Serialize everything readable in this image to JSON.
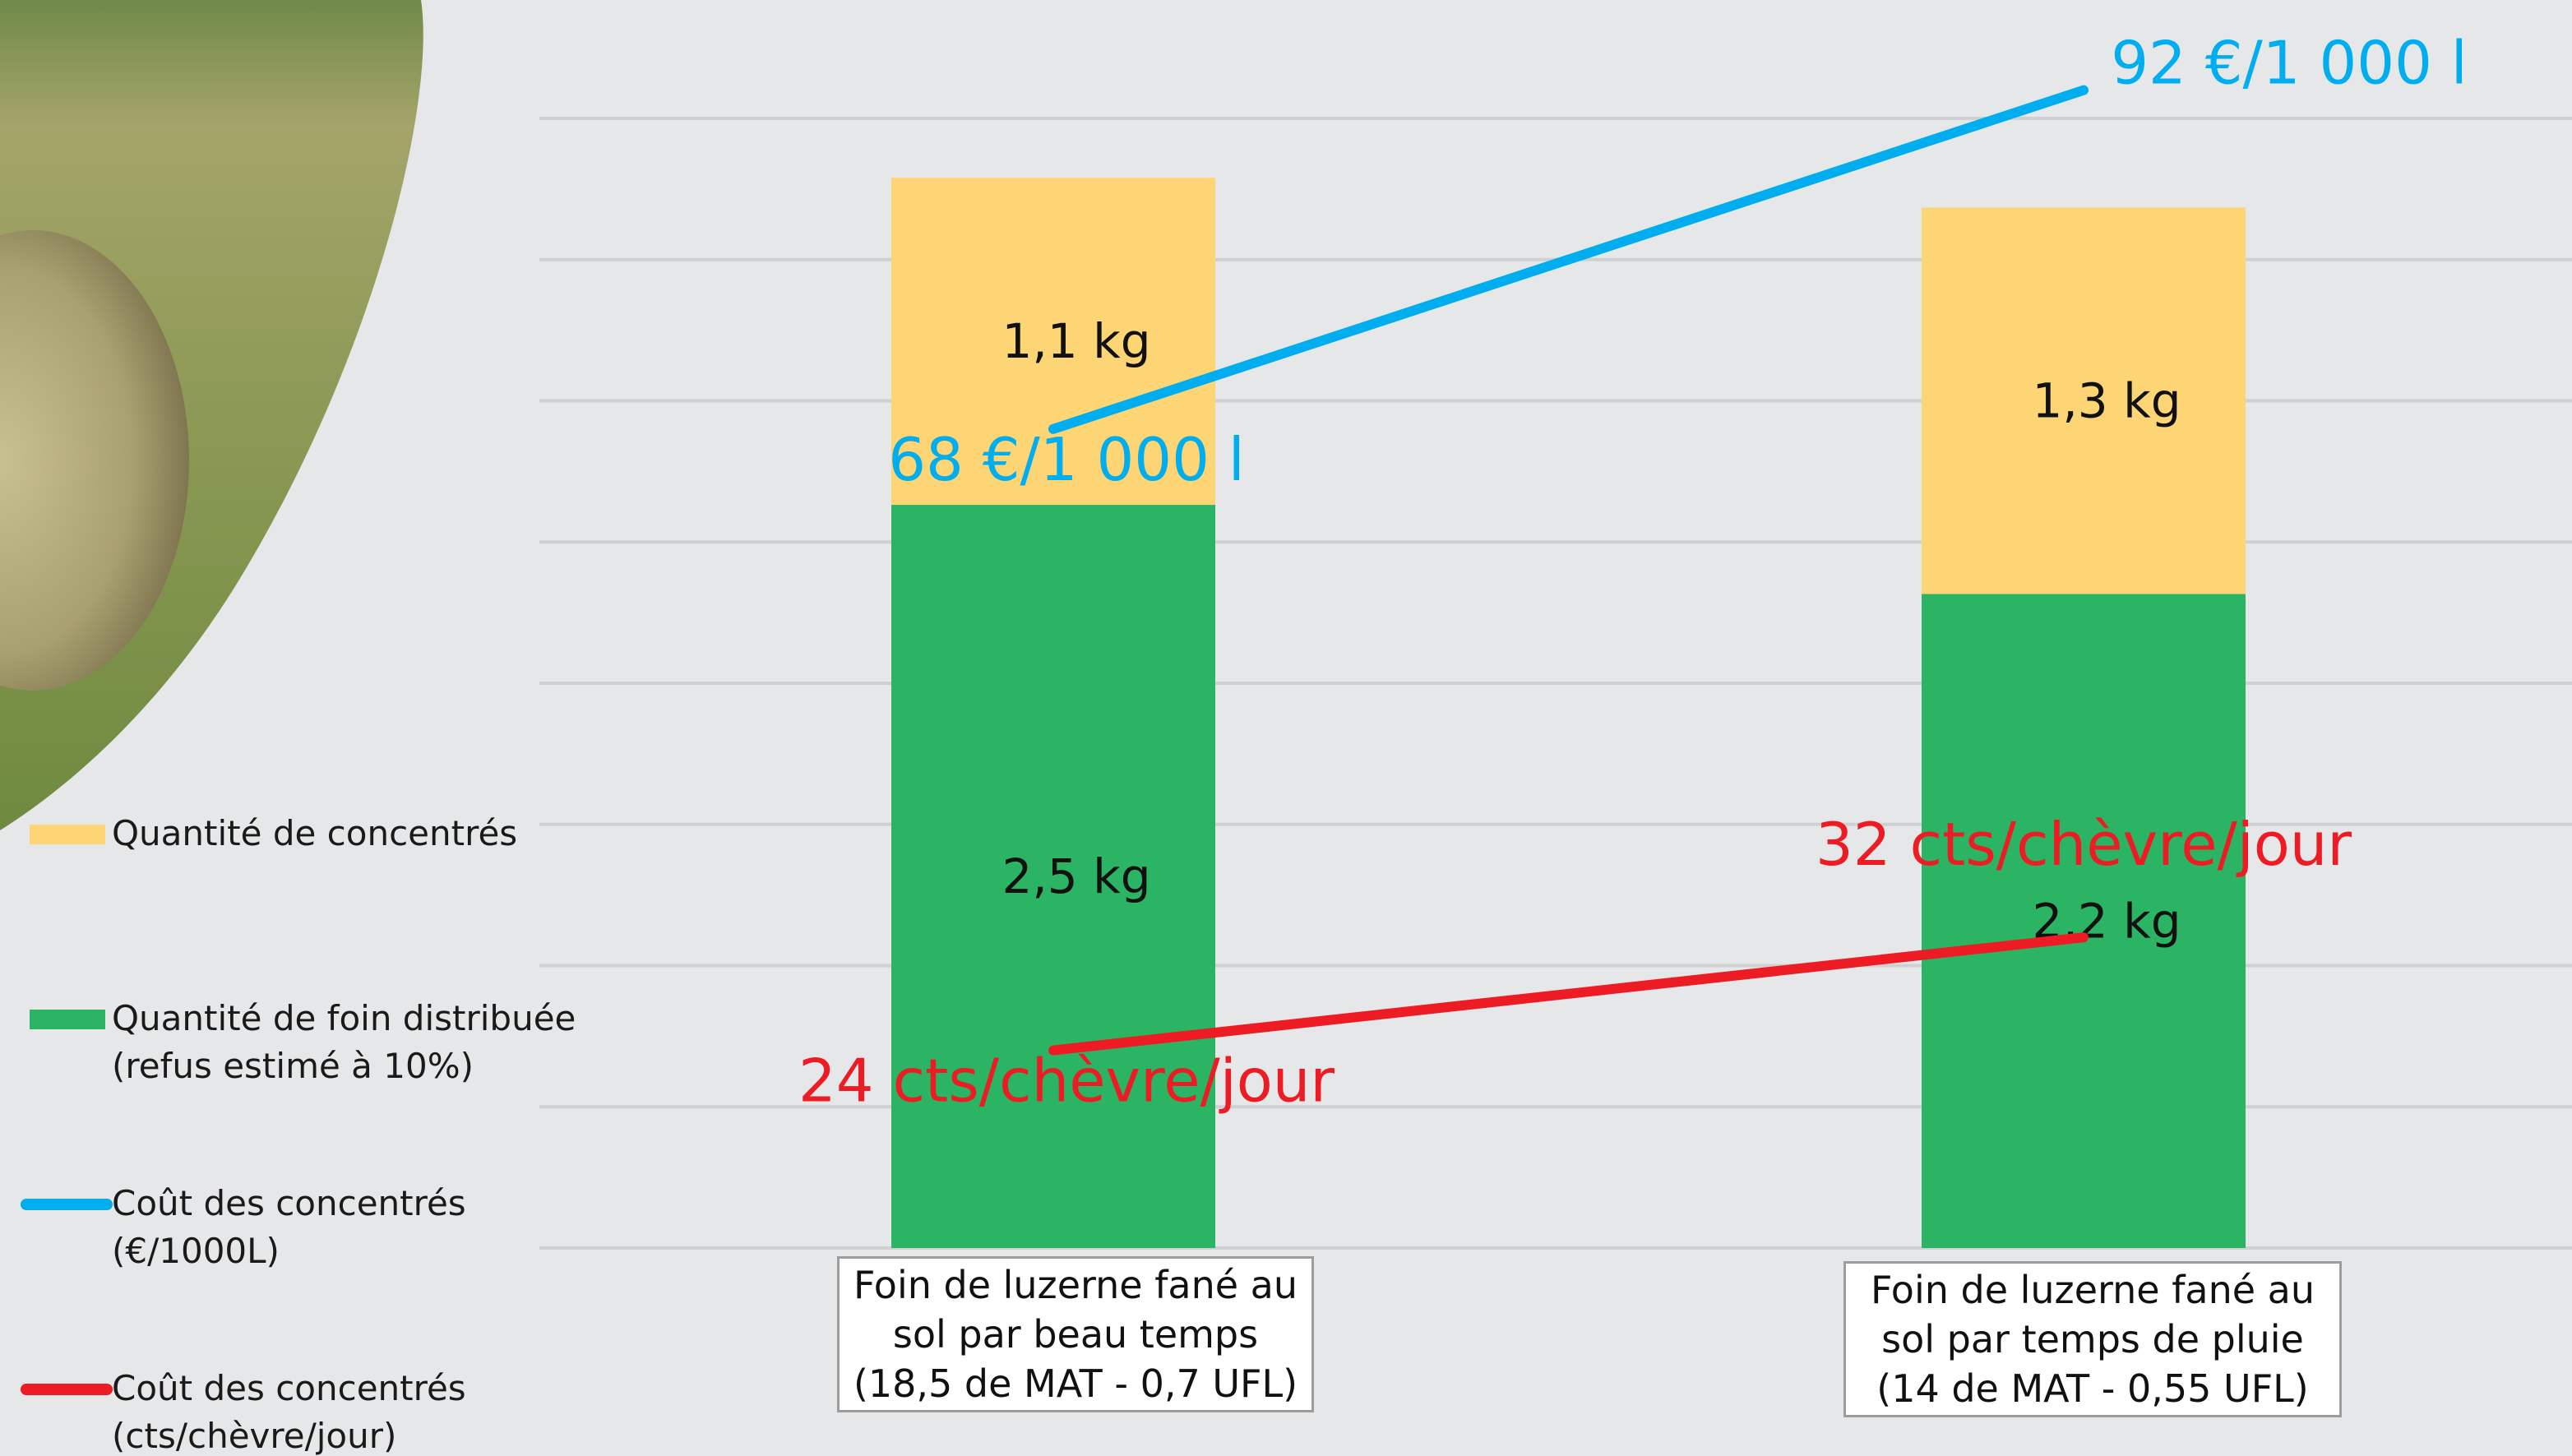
{
  "chart_data": {
    "type": "bar",
    "stacked": true,
    "categories": [
      "Foin de luzerne  fané au sol par beau temps (18,5 de MAT - 0,7 UFL)",
      "Foin de luzerne  fané au sol par temps de pluie (14 de MAT - 0,55 UFL)"
    ],
    "series": [
      {
        "name": "Quantité de concentrés",
        "color": "#fdd574",
        "values": [
          1.1,
          1.3
        ],
        "value_labels": [
          "1,1 kg",
          "1,3 kg"
        ]
      },
      {
        "name": "Quantité de foin distribuée\n(refus estimé à 10%)",
        "color": "#2ab463",
        "values": [
          2.5,
          2.2
        ],
        "value_labels": [
          "2,5 kg",
          "2,2 kg"
        ]
      },
      {
        "name": "Coût des concentrés\n(€/1000L)",
        "color": "#00aeef",
        "type": "line",
        "axis": "y2",
        "values": [
          68,
          92
        ],
        "value_labels": [
          "68 €/1 000 l",
          "92 €/1 000 l"
        ]
      },
      {
        "name": "Coût des concentrés\n(cts/chèvre/jour)",
        "color": "#ed1c24",
        "type": "line",
        "axis": "y2",
        "values": [
          24,
          32
        ],
        "value_labels": [
          "24 cts/chèvre/jour",
          "32 cts/chèvre/jour"
        ]
      }
    ],
    "ylim": [
      0,
      3.8
    ],
    "y2lim": [
      10,
      90
    ],
    "grid": true
  }
}
